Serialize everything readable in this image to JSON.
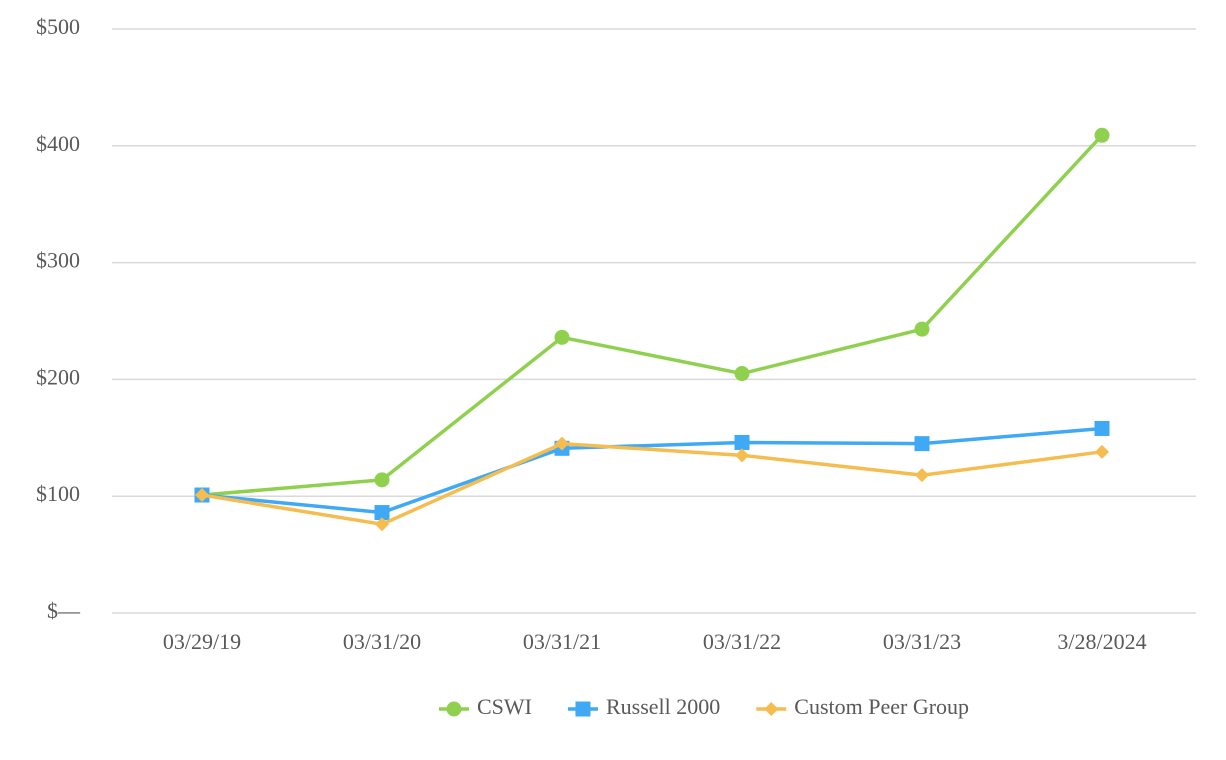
{
  "chart_data": {
    "type": "line",
    "categories": [
      "03/29/19",
      "03/31/20",
      "03/31/21",
      "03/31/22",
      "03/31/23",
      "3/28/2024"
    ],
    "series": [
      {
        "name": "CSWI",
        "color": "#8fd14f",
        "marker": "circle",
        "values": [
          101,
          114,
          236,
          205,
          243,
          409
        ]
      },
      {
        "name": "Russell 2000",
        "color": "#3fa9f5",
        "marker": "square",
        "values": [
          101,
          86,
          141,
          146,
          145,
          158
        ]
      },
      {
        "name": "Custom Peer Group",
        "color": "#f5bd4f",
        "marker": "diamond",
        "values": [
          101,
          76,
          145,
          135,
          118,
          138
        ]
      }
    ],
    "ylim": [
      0,
      500
    ],
    "yticks": [
      {
        "value": 0,
        "label": "$—"
      },
      {
        "value": 100,
        "label": "$100"
      },
      {
        "value": 200,
        "label": "$200"
      },
      {
        "value": 300,
        "label": "$300"
      },
      {
        "value": 400,
        "label": "$400"
      },
      {
        "value": 500,
        "label": "$500"
      }
    ],
    "grid": true,
    "legend": "bottom"
  }
}
